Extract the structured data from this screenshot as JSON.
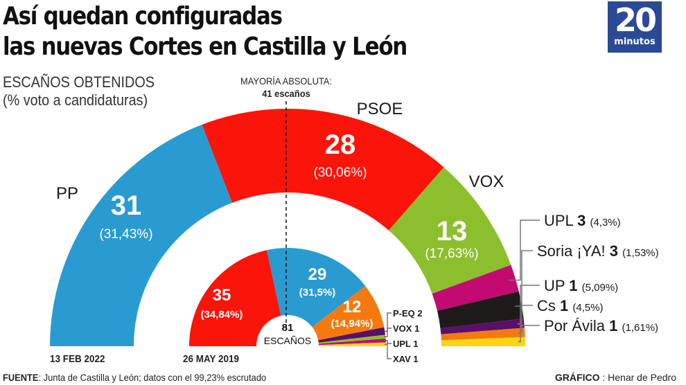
{
  "header": {
    "title_line1": "Así quedan configuradas",
    "title_line2": "las nuevas Cortes en Castilla y León",
    "logo_number": "20",
    "logo_word": "minutos",
    "logo_color": "#2b4a96"
  },
  "subtitle": {
    "line1": "ESCAÑOS OBTENIDOS",
    "line2": "(% voto a candidaturas)"
  },
  "majority": {
    "line1": "MAYORÍA ABSOLUTA:",
    "line2": "41 escaños"
  },
  "footer": {
    "source_label": "FUENTE",
    "source_text": ": Junta de Castilla y León; datos con el 99,23% escrutado",
    "credit_label": "GRÁFICO",
    "credit_text": " : Henar de Pedro"
  },
  "chart_data": [
    {
      "type": "pie",
      "subtype": "parliament-semicircle",
      "date_label": "13 FEB 2022",
      "total_seats": 81,
      "majority_seats": 41,
      "series": [
        {
          "party": "PP",
          "seats": 31,
          "vote_pct": "31,43%",
          "color": "#2a9bd1",
          "label_position": "outside-left"
        },
        {
          "party": "PSOE",
          "seats": 28,
          "vote_pct": "30,06%",
          "color": "#fb1409",
          "label_position": "outside-top"
        },
        {
          "party": "VOX",
          "seats": 13,
          "vote_pct": "17,63%",
          "color": "#8cbf2e",
          "label_position": "outside-right"
        },
        {
          "party": "UPL",
          "seats": 3,
          "vote_pct": "4,3%",
          "color": "#c20a72",
          "label_position": "callout"
        },
        {
          "party": "Soria ¡YA!",
          "seats": 3,
          "vote_pct": "1,53%",
          "color": "#1e1a1a",
          "label_position": "callout"
        },
        {
          "party": "UP",
          "seats": 1,
          "vote_pct": "5,09%",
          "color": "#5a0f6b",
          "label_position": "callout"
        },
        {
          "party": "Cs",
          "seats": 1,
          "vote_pct": "4,5%",
          "color": "#f47a10",
          "label_position": "callout"
        },
        {
          "party": "Por Ávila",
          "seats": 1,
          "vote_pct": "1,61%",
          "color": "#f9d512",
          "label_position": "callout"
        }
      ]
    },
    {
      "type": "pie",
      "subtype": "parliament-semicircle",
      "date_label": "26 MAY 2019",
      "total_seats": 81,
      "center_label_number": "81",
      "center_label_text": "ESCAÑOS",
      "series": [
        {
          "party": "PSOE",
          "seats": 35,
          "vote_pct": "34,84%",
          "color": "#fb1409"
        },
        {
          "party": "PP",
          "seats": 29,
          "vote_pct": "31,5%",
          "color": "#2a9bd1"
        },
        {
          "party": "Cs",
          "seats": 12,
          "vote_pct": "14,94%",
          "color": "#f47a10"
        },
        {
          "party": "P-EQ",
          "seats": 2,
          "color": "#5a0f6b"
        },
        {
          "party": "VOX",
          "seats": 1,
          "color": "#8cbf2e"
        },
        {
          "party": "UPL",
          "seats": 1,
          "color": "#c20a72"
        },
        {
          "party": "XAV",
          "seats": 1,
          "color": "#f9d512"
        }
      ]
    }
  ]
}
